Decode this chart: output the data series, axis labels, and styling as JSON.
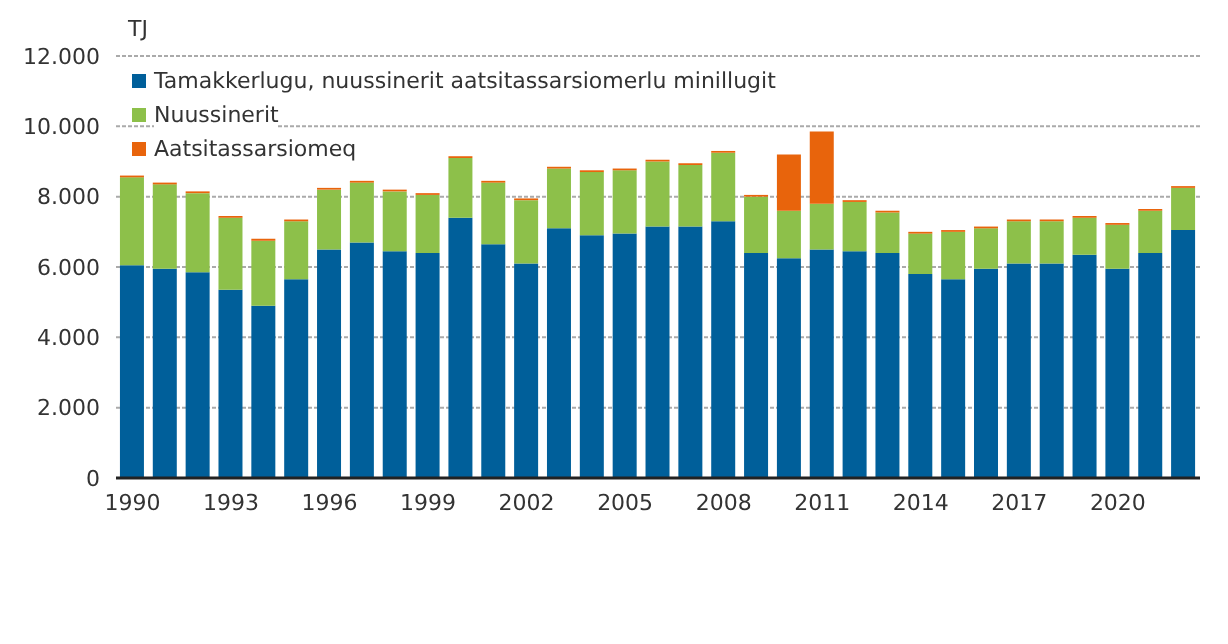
{
  "chart_data": {
    "type": "bar",
    "stacked": true,
    "ylabel": "TJ",
    "categories": [
      "1990",
      null,
      null,
      "1993",
      null,
      null,
      "1996",
      null,
      null,
      "1999",
      null,
      null,
      "2002",
      null,
      null,
      "2005",
      null,
      null,
      "2008",
      null,
      null,
      "2011",
      null,
      null,
      "2014",
      null,
      null,
      "2017",
      null,
      null,
      "2020",
      null,
      null
    ],
    "series": [
      {
        "name": "Tamakkerlugu, nuussinerit aatsitassarsiomerlu minillugit",
        "color": "#005f9a",
        "values": [
          6050,
          5950,
          5850,
          5350,
          4900,
          5650,
          6500,
          6700,
          6450,
          6400,
          7400,
          6650,
          6100,
          7100,
          6900,
          6950,
          7150,
          7150,
          7300,
          6400,
          6250,
          6500,
          6450,
          6400,
          5800,
          5650,
          5950,
          6100,
          6100,
          6350,
          5950,
          6400,
          7050
        ]
      },
      {
        "name": "Nuussinerit",
        "color": "#8dc04a",
        "values": [
          2500,
          2400,
          2250,
          2050,
          1850,
          1650,
          1700,
          1700,
          1700,
          1650,
          1700,
          1750,
          1800,
          1700,
          1800,
          1800,
          1850,
          1750,
          1950,
          1600,
          1350,
          1300,
          1400,
          1150,
          1150,
          1350,
          1150,
          1200,
          1200,
          1050,
          1250,
          1200,
          1200
        ]
      },
      {
        "name": "Aatsitassarsiomeq",
        "color": "#e8640c",
        "values": [
          50,
          50,
          50,
          50,
          50,
          50,
          50,
          50,
          50,
          50,
          50,
          50,
          50,
          50,
          50,
          50,
          50,
          50,
          50,
          50,
          1600,
          2050,
          50,
          50,
          50,
          50,
          50,
          50,
          50,
          50,
          50,
          50,
          50
        ]
      }
    ],
    "ylim": [
      0,
      12000
    ],
    "yticks": [
      {
        "value": 0,
        "label": "0"
      },
      {
        "value": 2000,
        "label": "2.000"
      },
      {
        "value": 4000,
        "label": "4.000"
      },
      {
        "value": 6000,
        "label": "6.000"
      },
      {
        "value": 8000,
        "label": "8.000"
      },
      {
        "value": 10000,
        "label": "10.000"
      },
      {
        "value": 12000,
        "label": "12.000"
      }
    ],
    "grid": "y",
    "legend": "top left"
  }
}
